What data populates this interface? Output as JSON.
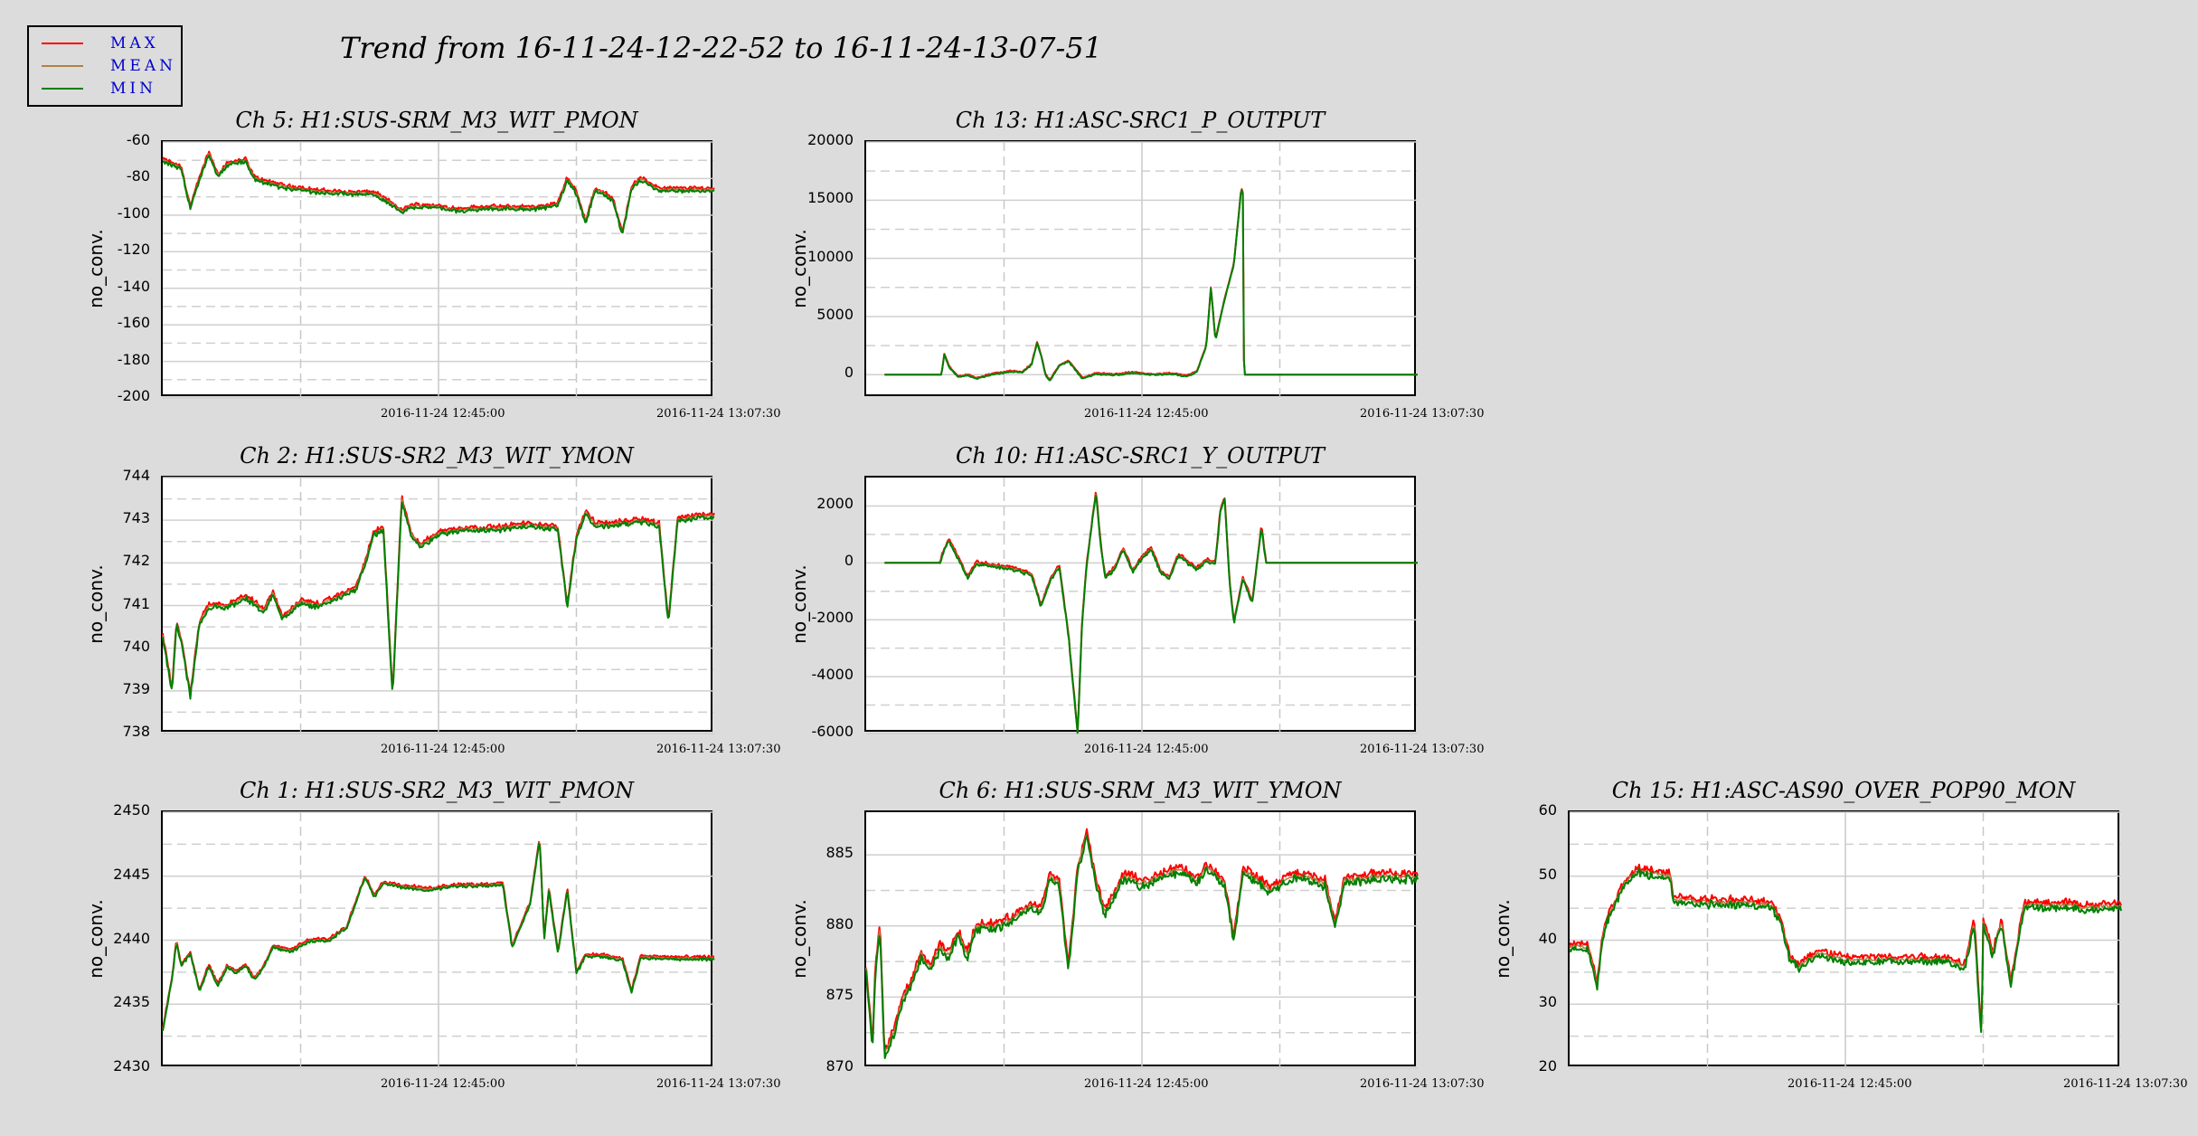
{
  "title": "Trend from 16-11-24-12-22-52 to 16-11-24-13-07-51",
  "legend": [
    {
      "label": "MAX",
      "color": "#ff0000"
    },
    {
      "label": "MEAN",
      "color": "#b0804a"
    },
    {
      "label": "MIN",
      "color": "#008000"
    }
  ],
  "chart_data": [
    {
      "type": "line",
      "title": "Ch 5: H1:SUS-SRM_M3_WIT_PMON",
      "ylabel": "no_conv.",
      "ylim": [
        -200,
        -60
      ],
      "yticks": [
        "-60",
        "-80",
        "-100",
        "-120",
        "-140",
        "-160",
        "-180",
        "-200"
      ],
      "xticks": [
        "2016-11-24 12:45:00",
        "2016-11-24 13:07:30"
      ],
      "noise": 2.2,
      "points": [
        [
          0,
          -70
        ],
        [
          2,
          -74
        ],
        [
          3,
          -96
        ],
        [
          4,
          -80
        ],
        [
          5,
          -66
        ],
        [
          6,
          -78
        ],
        [
          7,
          -72
        ],
        [
          9,
          -70
        ],
        [
          10,
          -80
        ],
        [
          12,
          -83
        ],
        [
          14,
          -85
        ],
        [
          17,
          -87
        ],
        [
          20,
          -88
        ],
        [
          23,
          -88
        ],
        [
          25,
          -94
        ],
        [
          26,
          -98
        ],
        [
          27,
          -95
        ],
        [
          29,
          -95
        ],
        [
          32,
          -97
        ],
        [
          35,
          -96
        ],
        [
          38,
          -96
        ],
        [
          41,
          -96
        ],
        [
          43,
          -94
        ],
        [
          44,
          -80
        ],
        [
          45,
          -88
        ],
        [
          46,
          -104
        ],
        [
          47,
          -86
        ],
        [
          48,
          -88
        ],
        [
          49,
          -92
        ],
        [
          50,
          -110
        ],
        [
          51,
          -85
        ],
        [
          52,
          -80
        ],
        [
          54,
          -86
        ],
        [
          57,
          -86
        ],
        [
          60,
          -86
        ]
      ]
    },
    {
      "type": "line",
      "title": "Ch 13: H1:ASC-SRC1_P_OUTPUT",
      "ylabel": "no_conv.",
      "ylim": [
        -2000,
        20000
      ],
      "yticks": [
        "20000",
        "15000",
        "10000",
        "5000",
        "0"
      ],
      "xticks": [
        "2016-11-24 12:45:00",
        "2016-11-24 13:07:30"
      ],
      "noise": 120,
      "points": [
        [
          2,
          0
        ],
        [
          8,
          0
        ],
        [
          8.2,
          0
        ],
        [
          8.5,
          1800
        ],
        [
          9,
          700
        ],
        [
          10,
          -200
        ],
        [
          11,
          0
        ],
        [
          12,
          -300
        ],
        [
          14,
          100
        ],
        [
          16,
          300
        ],
        [
          17,
          200
        ],
        [
          18,
          900
        ],
        [
          18.6,
          2800
        ],
        [
          19,
          1800
        ],
        [
          19.5,
          0
        ],
        [
          20,
          -500
        ],
        [
          21,
          800
        ],
        [
          22,
          1200
        ],
        [
          23,
          200
        ],
        [
          23.5,
          -300
        ],
        [
          25,
          100
        ],
        [
          27,
          0
        ],
        [
          29,
          200
        ],
        [
          31,
          0
        ],
        [
          33,
          100
        ],
        [
          35,
          -100
        ],
        [
          36,
          300
        ],
        [
          37,
          2500
        ],
        [
          37.5,
          7500
        ],
        [
          38,
          3000
        ],
        [
          39,
          6500
        ],
        [
          40,
          9500
        ],
        [
          40.8,
          16000
        ],
        [
          41,
          15500
        ],
        [
          41.1,
          0
        ],
        [
          60,
          0
        ]
      ]
    },
    {
      "type": "line",
      "title": "Ch 2: H1:SUS-SR2_M3_WIT_YMON",
      "ylabel": "no_conv.",
      "ylim": [
        738,
        744
      ],
      "yticks": [
        "744",
        "743",
        "742",
        "741",
        "740",
        "739",
        "738"
      ],
      "xticks": [
        "2016-11-24 12:45:00",
        "2016-11-24 13:07:30"
      ],
      "noise": 0.12,
      "points": [
        [
          0,
          740.3
        ],
        [
          1,
          739.0
        ],
        [
          1.5,
          740.6
        ],
        [
          2,
          740.2
        ],
        [
          3,
          738.9
        ],
        [
          4,
          740.6
        ],
        [
          5,
          741.0
        ],
        [
          7,
          741.0
        ],
        [
          9,
          741.2
        ],
        [
          11,
          740.9
        ],
        [
          12,
          741.3
        ],
        [
          13,
          740.7
        ],
        [
          15,
          741.1
        ],
        [
          17,
          741.0
        ],
        [
          19,
          741.2
        ],
        [
          21,
          741.4
        ],
        [
          22,
          742.0
        ],
        [
          23,
          742.7
        ],
        [
          24,
          742.8
        ],
        [
          25,
          738.9
        ],
        [
          26,
          743.5
        ],
        [
          27,
          742.7
        ],
        [
          28,
          742.4
        ],
        [
          30,
          742.7
        ],
        [
          33,
          742.8
        ],
        [
          36,
          742.8
        ],
        [
          40,
          742.9
        ],
        [
          43,
          742.8
        ],
        [
          44,
          741.0
        ],
        [
          45,
          742.6
        ],
        [
          46,
          743.2
        ],
        [
          47,
          742.9
        ],
        [
          49,
          742.9
        ],
        [
          52,
          743.0
        ],
        [
          54,
          742.9
        ],
        [
          55,
          740.6
        ],
        [
          56,
          743.0
        ],
        [
          58,
          743.1
        ],
        [
          60,
          743.1
        ]
      ]
    },
    {
      "type": "line",
      "title": "Ch 10: H1:ASC-SRC1_Y_OUTPUT",
      "ylabel": "no_conv.",
      "ylim": [
        -6000,
        3000
      ],
      "yticks": [
        "2000",
        "0",
        "-2000",
        "-4000",
        "-6000"
      ],
      "xticks": [
        "2016-11-24 12:45:00",
        "2016-11-24 13:07:30"
      ],
      "noise": 110,
      "points": [
        [
          2,
          0
        ],
        [
          8,
          0
        ],
        [
          8.5,
          500
        ],
        [
          9,
          800
        ],
        [
          10,
          200
        ],
        [
          11,
          -500
        ],
        [
          12,
          0
        ],
        [
          14,
          -100
        ],
        [
          16,
          -200
        ],
        [
          18,
          -400
        ],
        [
          19,
          -1500
        ],
        [
          20,
          -600
        ],
        [
          21,
          -100
        ],
        [
          22,
          -2500
        ],
        [
          23,
          -6000
        ],
        [
          23.5,
          -2000
        ],
        [
          24,
          0
        ],
        [
          25,
          2500
        ],
        [
          25.5,
          700
        ],
        [
          26,
          -500
        ],
        [
          27,
          -200
        ],
        [
          28,
          500
        ],
        [
          29,
          -300
        ],
        [
          30,
          200
        ],
        [
          31,
          500
        ],
        [
          32,
          -300
        ],
        [
          33,
          -500
        ],
        [
          34,
          300
        ],
        [
          35,
          0
        ],
        [
          36,
          -200
        ],
        [
          37,
          100
        ],
        [
          38,
          0
        ],
        [
          38.5,
          1800
        ],
        [
          39,
          2300
        ],
        [
          39.5,
          -500
        ],
        [
          40,
          -2100
        ],
        [
          41,
          -500
        ],
        [
          42,
          -1400
        ],
        [
          43,
          1300
        ],
        [
          43.5,
          0
        ],
        [
          44,
          0
        ],
        [
          60,
          0
        ]
      ]
    },
    {
      "type": "line",
      "title": "Ch 1: H1:SUS-SR2_M3_WIT_PMON",
      "ylabel": "no_conv.",
      "ylim": [
        2430,
        2450
      ],
      "yticks": [
        "2450",
        "2445",
        "2440",
        "2435",
        "2430"
      ],
      "xticks": [
        "2016-11-24 12:45:00",
        "2016-11-24 13:07:30"
      ],
      "noise": 0.25,
      "points": [
        [
          0,
          2433
        ],
        [
          1,
          2437
        ],
        [
          1.5,
          2440
        ],
        [
          2,
          2438
        ],
        [
          3,
          2439
        ],
        [
          4,
          2436
        ],
        [
          5,
          2438
        ],
        [
          6,
          2436.5
        ],
        [
          7,
          2438
        ],
        [
          8,
          2437.5
        ],
        [
          9,
          2438
        ],
        [
          10,
          2437
        ],
        [
          11,
          2438
        ],
        [
          12,
          2439.5
        ],
        [
          14,
          2439.2
        ],
        [
          16,
          2440
        ],
        [
          18,
          2440
        ],
        [
          20,
          2441
        ],
        [
          22,
          2445
        ],
        [
          23,
          2443.5
        ],
        [
          24,
          2444.5
        ],
        [
          26,
          2444.2
        ],
        [
          29,
          2444
        ],
        [
          32,
          2444.3
        ],
        [
          35,
          2444.3
        ],
        [
          37,
          2444.4
        ],
        [
          38,
          2439.5
        ],
        [
          40,
          2443
        ],
        [
          41,
          2448
        ],
        [
          41.5,
          2440
        ],
        [
          42,
          2444
        ],
        [
          43,
          2439
        ],
        [
          44,
          2444
        ],
        [
          45,
          2437.5
        ],
        [
          46,
          2438.8
        ],
        [
          48,
          2438.8
        ],
        [
          50,
          2438.5
        ],
        [
          51,
          2436
        ],
        [
          52,
          2438.7
        ],
        [
          56,
          2438.6
        ],
        [
          60,
          2438.6
        ]
      ]
    },
    {
      "type": "line",
      "title": "Ch 6: H1:SUS-SRM_M3_WIT_YMON",
      "ylabel": "no_conv.",
      "ylim": [
        870,
        888
      ],
      "yticks": [
        "885",
        "880",
        "875",
        "870"
      ],
      "xticks": [
        "2016-11-24 12:45:00",
        "2016-11-24 13:07:30"
      ],
      "noise": 0.6,
      "points": [
        [
          0,
          877
        ],
        [
          0.7,
          871.5
        ],
        [
          1,
          877
        ],
        [
          1.5,
          880
        ],
        [
          2,
          871
        ],
        [
          3,
          872.5
        ],
        [
          4,
          875
        ],
        [
          5,
          876
        ],
        [
          6,
          878
        ],
        [
          7,
          877
        ],
        [
          8,
          878.5
        ],
        [
          9,
          878
        ],
        [
          10,
          879.5
        ],
        [
          11,
          878
        ],
        [
          12,
          880
        ],
        [
          14,
          880
        ],
        [
          16,
          880.5
        ],
        [
          18,
          881.5
        ],
        [
          19,
          881
        ],
        [
          20,
          883.5
        ],
        [
          21,
          883
        ],
        [
          22,
          877
        ],
        [
          23,
          884
        ],
        [
          24,
          886.5
        ],
        [
          25,
          883
        ],
        [
          26,
          881
        ],
        [
          28,
          883.5
        ],
        [
          30,
          883
        ],
        [
          32,
          883.5
        ],
        [
          34,
          884
        ],
        [
          36,
          883.2
        ],
        [
          37,
          884.2
        ],
        [
          39,
          883
        ],
        [
          40,
          879
        ],
        [
          41,
          884
        ],
        [
          43,
          883
        ],
        [
          44,
          882.5
        ],
        [
          46,
          883.5
        ],
        [
          48,
          883.5
        ],
        [
          50,
          883
        ],
        [
          51,
          880
        ],
        [
          52,
          883.2
        ],
        [
          55,
          883.5
        ],
        [
          60,
          883.5
        ]
      ]
    },
    {
      "type": "line",
      "title": "Ch 15: H1:ASC-AS90_OVER_POP90_MON",
      "ylabel": "no_conv.",
      "ylim": [
        20,
        60
      ],
      "yticks": [
        "60",
        "50",
        "40",
        "30",
        "20"
      ],
      "xticks": [
        "2016-11-24 12:45:00",
        "2016-11-24 13:07:30"
      ],
      "noise": 1.2,
      "points": [
        [
          0,
          39
        ],
        [
          2,
          39
        ],
        [
          3,
          33
        ],
        [
          3.5,
          40
        ],
        [
          4,
          43
        ],
        [
          6,
          49
        ],
        [
          7.5,
          51
        ],
        [
          9,
          50.5
        ],
        [
          11,
          50
        ],
        [
          11.2,
          46.5
        ],
        [
          14,
          46
        ],
        [
          18,
          46
        ],
        [
          22,
          45.5
        ],
        [
          23,
          43
        ],
        [
          24,
          37
        ],
        [
          25,
          36
        ],
        [
          27,
          38
        ],
        [
          30,
          37
        ],
        [
          34,
          37
        ],
        [
          38,
          37
        ],
        [
          41,
          37
        ],
        [
          43,
          36
        ],
        [
          44,
          43
        ],
        [
          44.8,
          25
        ],
        [
          45,
          43
        ],
        [
          46,
          38
        ],
        [
          47,
          43
        ],
        [
          48,
          33
        ],
        [
          49,
          42
        ],
        [
          49.5,
          45.5
        ],
        [
          52,
          45.5
        ],
        [
          54,
          45.5
        ],
        [
          56,
          45.2
        ],
        [
          60,
          45.3
        ]
      ]
    }
  ]
}
